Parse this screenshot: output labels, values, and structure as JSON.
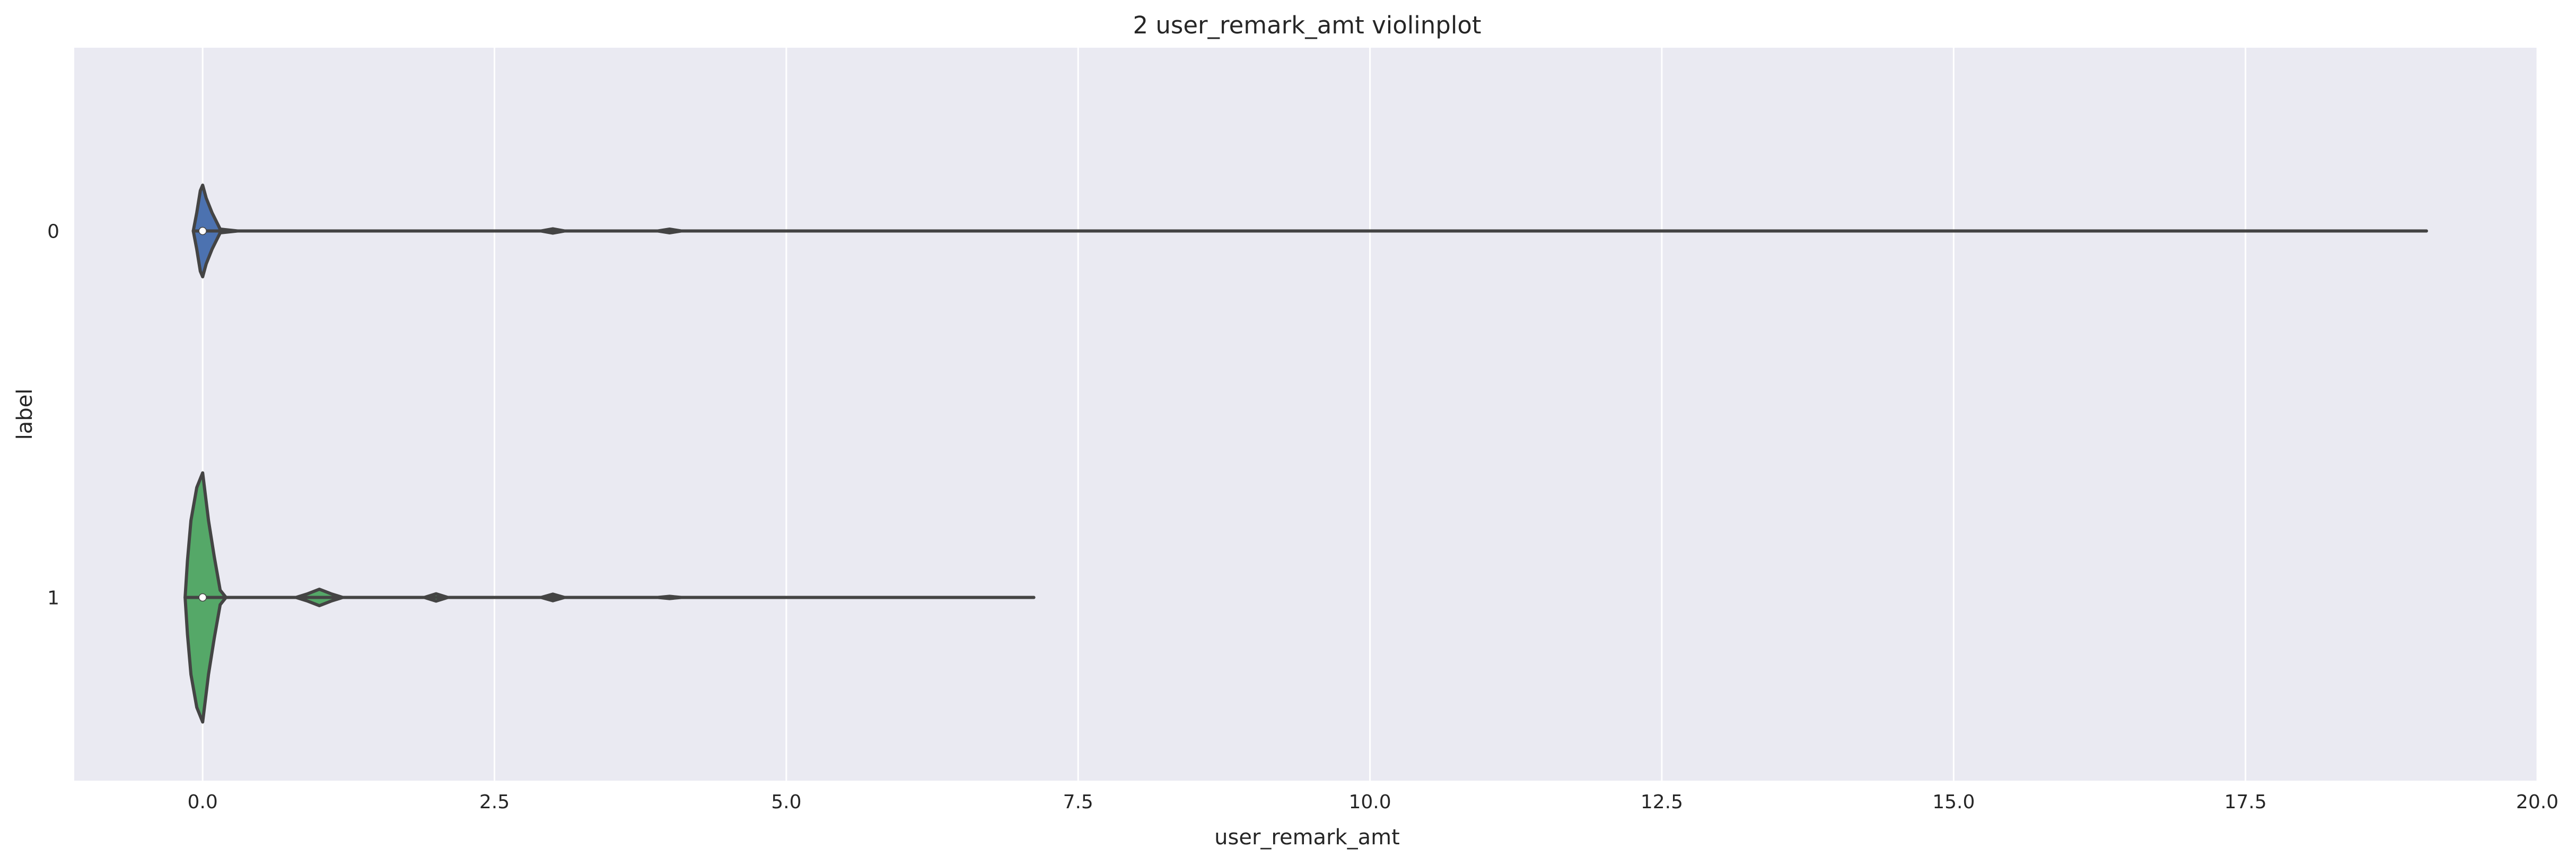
{
  "chart_data": {
    "type": "violin",
    "orientation": "horizontal",
    "title": "2 user_remark_amt violinplot",
    "xlabel": "user_remark_amt",
    "ylabel": "label",
    "xlim": [
      -1.1,
      20.0
    ],
    "xticks": [
      0.0,
      2.5,
      5.0,
      7.5,
      10.0,
      12.5,
      15.0,
      17.5,
      20.0
    ],
    "xtick_labels": [
      "0.0",
      "2.5",
      "5.0",
      "7.5",
      "10.0",
      "12.5",
      "15.0",
      "17.5",
      "20.0"
    ],
    "categories": [
      "0",
      "1"
    ],
    "grid": true,
    "background": "#eaeaf2",
    "grid_color": "#ffffff",
    "outline_color": "#444444",
    "series": [
      {
        "category": "0",
        "color": "#4c72b0",
        "median": 0.0,
        "min": -0.08,
        "max": 19.05,
        "density": [
          [
            -0.08,
            0.0
          ],
          [
            -0.05,
            0.1
          ],
          [
            -0.02,
            0.22
          ],
          [
            0.0,
            0.25
          ],
          [
            0.03,
            0.18
          ],
          [
            0.08,
            0.1
          ],
          [
            0.15,
            0.01
          ],
          [
            0.3,
            0.0
          ],
          [
            2.9,
            0.0
          ],
          [
            3.0,
            0.012
          ],
          [
            3.1,
            0.0
          ],
          [
            3.9,
            0.0
          ],
          [
            4.0,
            0.01
          ],
          [
            4.1,
            0.0
          ],
          [
            19.05,
            0.0
          ]
        ]
      },
      {
        "category": "1",
        "color": "#55a868",
        "median": 0.0,
        "min": -0.15,
        "max": 7.12,
        "density": [
          [
            -0.15,
            0.0
          ],
          [
            -0.13,
            0.2
          ],
          [
            -0.1,
            0.42
          ],
          [
            -0.05,
            0.6
          ],
          [
            0.0,
            0.68
          ],
          [
            0.05,
            0.42
          ],
          [
            0.1,
            0.22
          ],
          [
            0.15,
            0.04
          ],
          [
            0.2,
            0.0
          ],
          [
            0.8,
            0.0
          ],
          [
            0.9,
            0.02
          ],
          [
            1.0,
            0.045
          ],
          [
            1.1,
            0.02
          ],
          [
            1.2,
            0.0
          ],
          [
            1.9,
            0.0
          ],
          [
            2.0,
            0.02
          ],
          [
            2.1,
            0.0
          ],
          [
            2.9,
            0.0
          ],
          [
            3.0,
            0.018
          ],
          [
            3.1,
            0.0
          ],
          [
            3.9,
            0.0
          ],
          [
            4.0,
            0.006
          ],
          [
            4.1,
            0.0
          ],
          [
            7.0,
            0.0
          ],
          [
            7.12,
            0.0
          ]
        ]
      }
    ]
  }
}
